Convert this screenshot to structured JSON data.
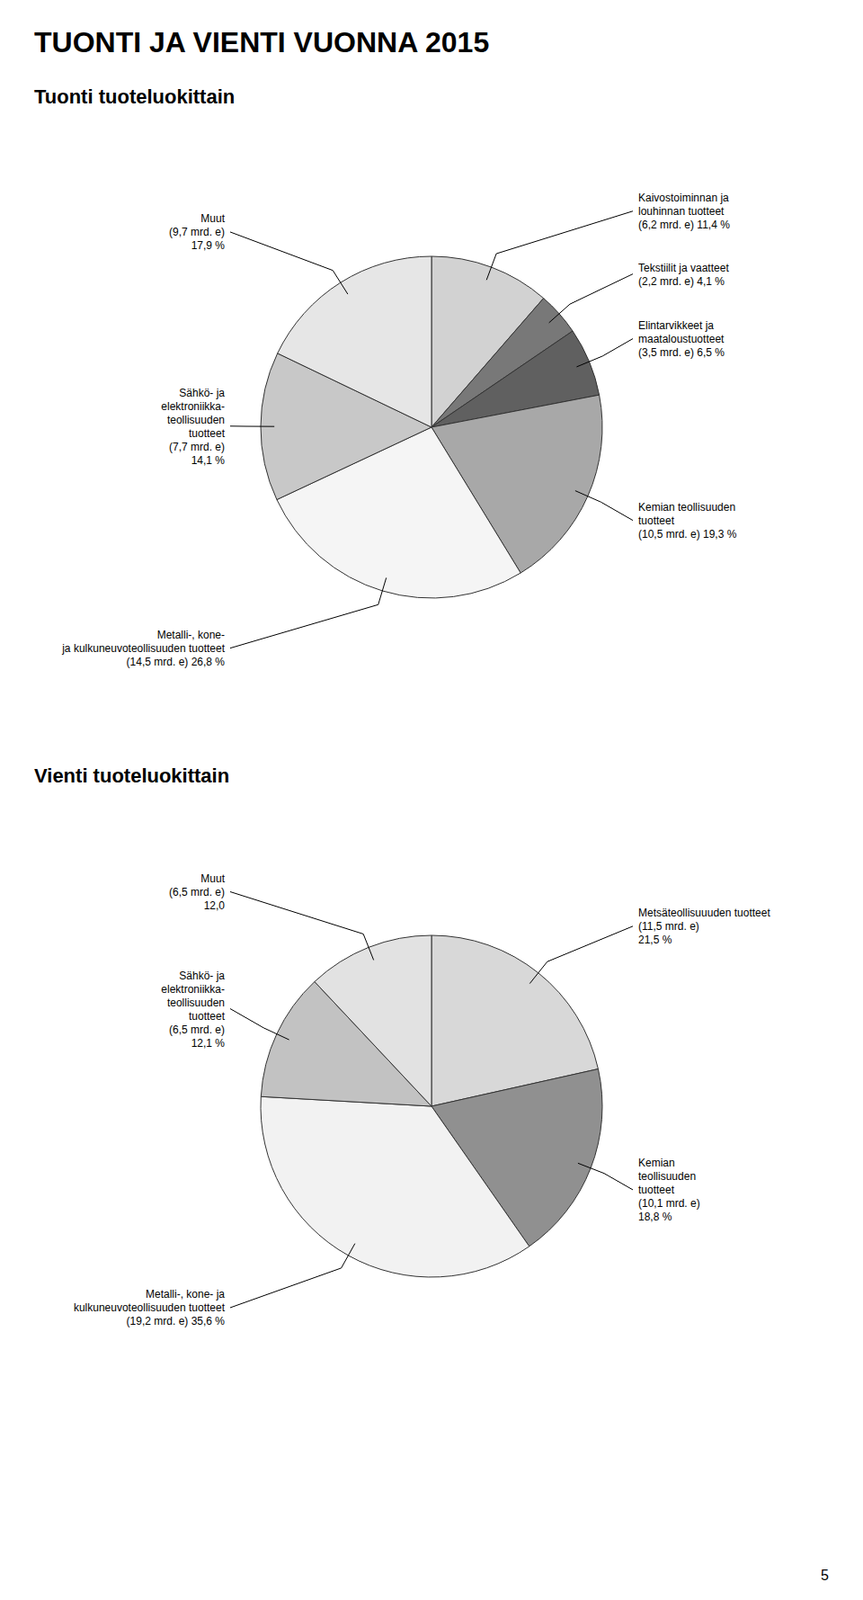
{
  "chart_data": [
    {
      "type": "pie",
      "title": "TUONTI JA VIENTI VUONNA 2015",
      "subtitle": "Tuonti tuoteluokittain",
      "values": [
        11.4,
        4.1,
        6.5,
        19.3,
        26.8,
        14.1,
        17.9
      ],
      "colors": [
        "#d2d2d2",
        "#787878",
        "#606060",
        "#a8a8a8",
        "#f5f5f5",
        "#c8c8c8",
        "#e6e6e6"
      ],
      "value_labels": [
        "Kaivostoiminnan ja\nlouhinnan tuotteet\n(6,2 mrd. e) 11,4 %",
        "Tekstiilit ja vaatteet\n(2,2 mrd. e) 4,1 %",
        "Elintarvikkeet  ja\nmaataloustuotteet\n(3,5 mrd. e) 6,5 %",
        "Kemian teollisuuden\ntuotteet\n(10,5 mrd. e) 19,3 %",
        "Metalli-, kone-\nja kulkuneuvoteollisuuden tuotteet\n(14,5 mrd. e) 26,8 %",
        "Sähkö- ja\nelektroniikka-\nteollisuuden\ntuotteet\n(7,7 mrd. e)\n14,1 %",
        "Muut\n(9,7 mrd. e)\n17,9 %"
      ],
      "data_labels": true
    },
    {
      "type": "pie",
      "subtitle": "Vienti tuoteluokittain",
      "values": [
        21.5,
        18.8,
        35.6,
        12.1,
        12.0
      ],
      "colors": [
        "#d8d8d8",
        "#909090",
        "#f2f2f2",
        "#c2c2c2",
        "#e2e2e2"
      ],
      "value_labels": [
        "Metsäteollisuuuden tuotteet\n(11,5 mrd. e)\n21,5 %",
        "Kemian\nteollisuuden\ntuotteet\n(10,1 mrd. e)\n18,8 %",
        "Metalli-, kone- ja\nkulkuneuvoteollisuuden tuotteet\n(19,2 mrd. e) 35,6 %",
        "Sähkö- ja\nelektroniikka-\nteollisuuden\ntuotteet\n(6,5 mrd. e)\n12,1 %",
        "Muut\n(6,5 mrd. e)\n12,0"
      ],
      "data_labels": true,
      "annotations": [
        "5"
      ]
    }
  ]
}
